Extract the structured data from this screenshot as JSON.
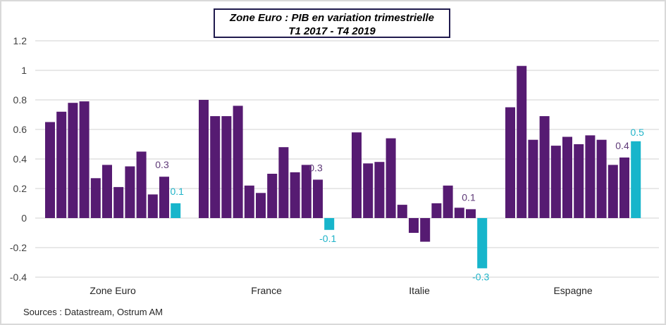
{
  "chart_data": {
    "type": "bar",
    "title": "Zone Euro : PIB  en variation trimestrielle",
    "subtitle": "T1 2017 - T4 2019",
    "xlabel": "",
    "ylabel": "",
    "ylim": [
      -0.4,
      1.2
    ],
    "yticks": [
      1.2,
      1,
      0.8,
      0.6,
      0.4,
      0.2,
      0,
      -0.2,
      -0.4
    ],
    "ytick_labels": [
      "1.2",
      "1",
      "0.8",
      "0.6",
      "0.4",
      "0.2",
      "0",
      "-0.2",
      "-0.4"
    ],
    "grid": true,
    "legend": "none",
    "categories": [
      "Zone Euro",
      "France",
      "Italie",
      "Espagne"
    ],
    "colors": {
      "default": "#561b72",
      "highlight": "#17b5cb",
      "label_default": "#5f3a78",
      "label_highlight": "#1fb3c8",
      "grid": "#d9d9d9"
    },
    "series_per_category": [
      {
        "category": "Zone Euro",
        "values": [
          0.65,
          0.72,
          0.78,
          0.79,
          0.27,
          0.36,
          0.21,
          0.35,
          0.45,
          0.16,
          0.28,
          0.1
        ],
        "labels": [
          {
            "index": 10,
            "text": "0.3",
            "style": "default"
          },
          {
            "index": 11,
            "text": "0.1",
            "style": "highlight"
          }
        ]
      },
      {
        "category": "France",
        "values": [
          0.8,
          0.69,
          0.69,
          0.76,
          0.22,
          0.17,
          0.3,
          0.48,
          0.31,
          0.36,
          0.26,
          -0.08
        ],
        "labels": [
          {
            "index": 10,
            "text": "0.3",
            "style": "default"
          },
          {
            "index": 11,
            "text": "-0.1",
            "style": "highlight"
          }
        ]
      },
      {
        "category": "Italie",
        "values": [
          0.58,
          0.37,
          0.38,
          0.54,
          0.09,
          -0.1,
          -0.16,
          0.1,
          0.22,
          0.07,
          0.06,
          -0.34
        ],
        "labels": [
          {
            "index": 10,
            "text": "0.1",
            "style": "default"
          },
          {
            "index": 11,
            "text": "-0.3",
            "style": "highlight"
          }
        ]
      },
      {
        "category": "Espagne",
        "values": [
          0.75,
          1.03,
          0.53,
          0.69,
          0.49,
          0.55,
          0.5,
          0.56,
          0.53,
          0.36,
          0.41,
          0.52
        ],
        "labels": [
          {
            "index": 10,
            "text": "0.4",
            "style": "default"
          },
          {
            "index": 11,
            "text": "0.5",
            "style": "highlight"
          }
        ]
      }
    ],
    "highlight_index": 11,
    "source": "Sources : Datastream,  Ostrum  AM"
  }
}
